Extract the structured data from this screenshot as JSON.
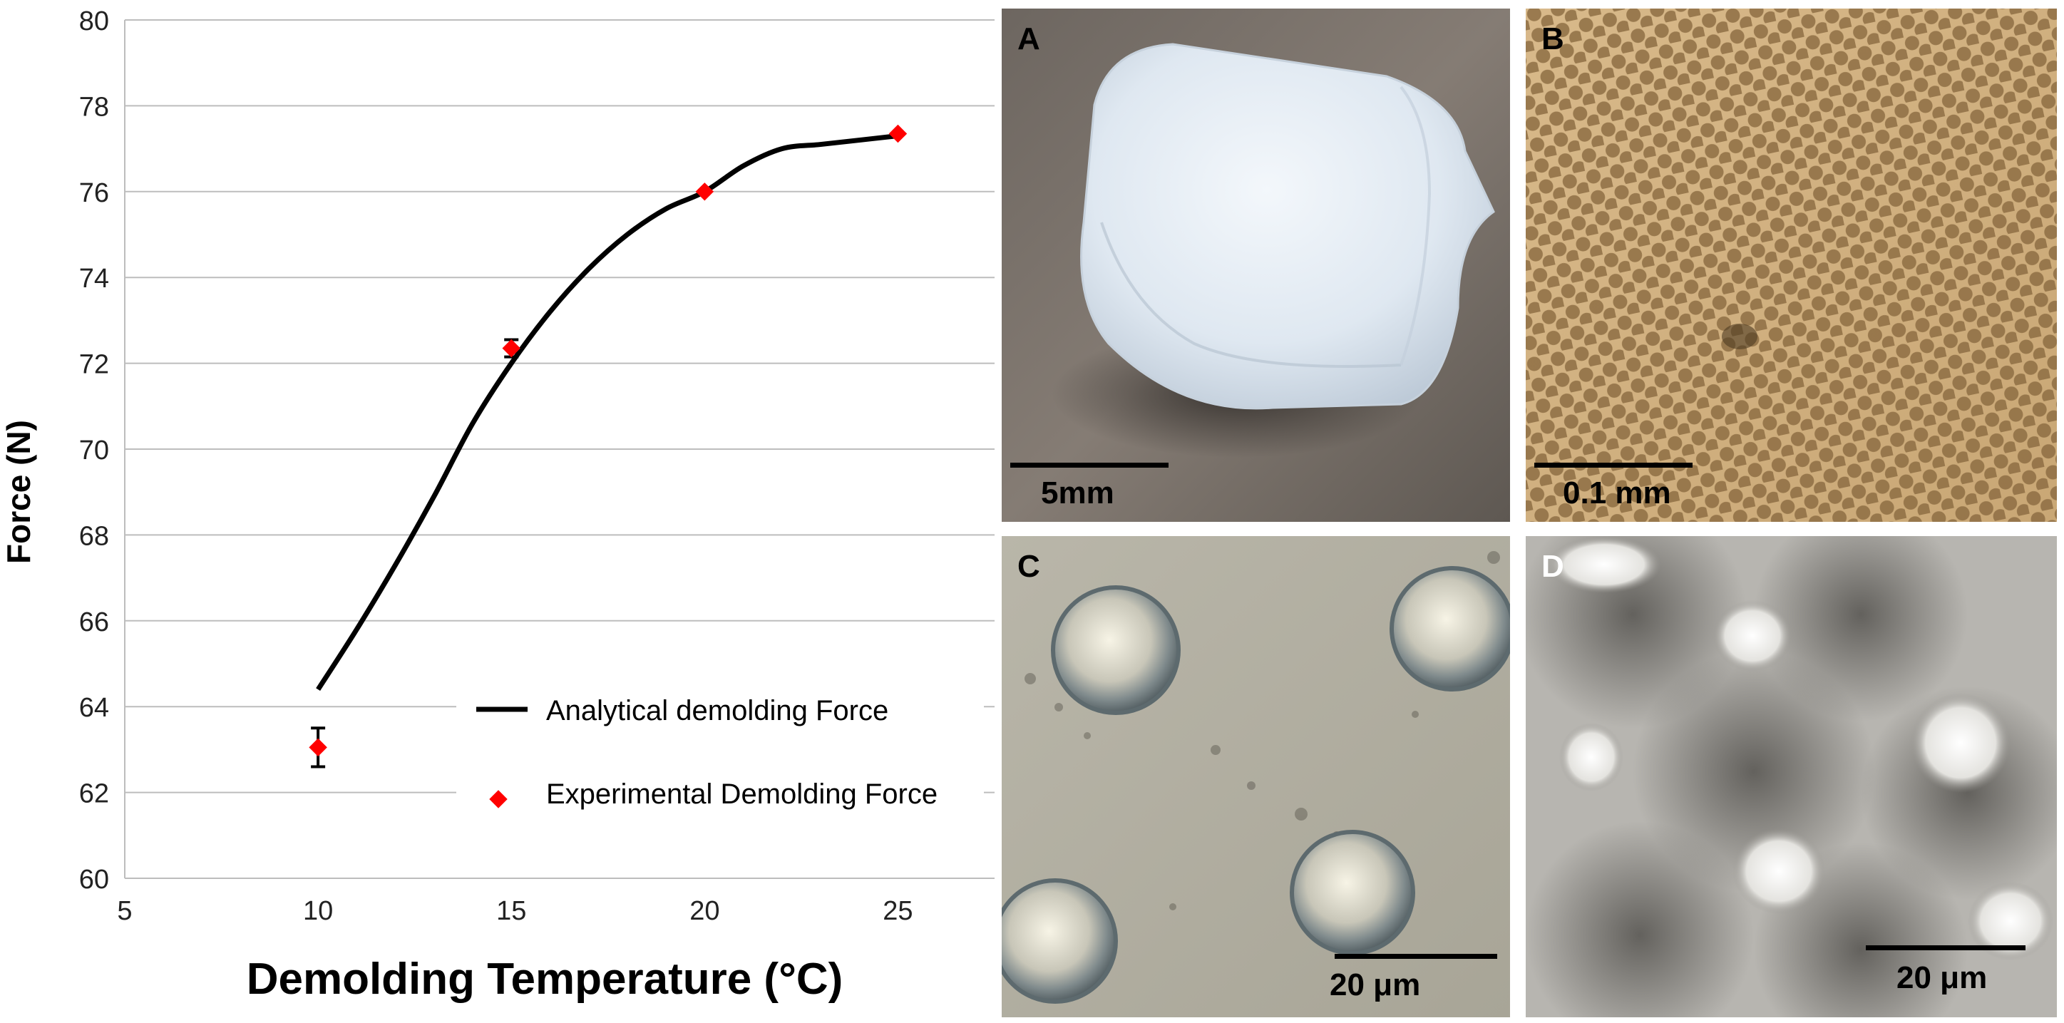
{
  "chart_data": {
    "type": "scatter",
    "xlabel": "Demolding Temperature (°C)",
    "ylabel": "Force (N)",
    "xlim": [
      5,
      27.5
    ],
    "ylim": [
      60,
      80
    ],
    "x_ticks": [
      5,
      10,
      15,
      20,
      25
    ],
    "y_ticks": [
      60,
      62,
      64,
      66,
      68,
      70,
      72,
      74,
      76,
      78,
      80
    ],
    "grid": "horizontal",
    "legend_position": "bottom-right",
    "series": [
      {
        "name": "Analytical demolding Force",
        "kind": "line",
        "color": "#000000",
        "x": [
          10,
          11,
          12,
          13,
          14,
          15,
          16,
          17,
          18,
          19,
          20,
          21,
          22,
          23,
          24,
          25
        ],
        "y": [
          64.4,
          65.8,
          67.3,
          68.9,
          70.6,
          72.0,
          73.2,
          74.2,
          75.0,
          75.6,
          76.0,
          76.6,
          77.0,
          77.1,
          77.2,
          77.3
        ]
      },
      {
        "name": "Experimental Demolding Force",
        "kind": "points",
        "color": "#ff0000",
        "x": [
          10,
          15,
          20,
          25
        ],
        "y": [
          63.05,
          72.35,
          76.0,
          77.35
        ],
        "error": [
          0.45,
          0.2,
          0.0,
          0.0
        ]
      }
    ]
  },
  "panels": [
    {
      "letter": "A",
      "scale_label": "5mm",
      "letter_color": "#000000",
      "label_color": "#000000"
    },
    {
      "letter": "B",
      "scale_label": "0.1 mm",
      "letter_color": "#000000",
      "label_color": "#000000"
    },
    {
      "letter": "C",
      "scale_label": "20 μm",
      "letter_color": "#000000",
      "label_color": "#000000"
    },
    {
      "letter": "D",
      "scale_label": "20 μm",
      "letter_color": "#ffffff",
      "label_color": "#000000"
    }
  ]
}
